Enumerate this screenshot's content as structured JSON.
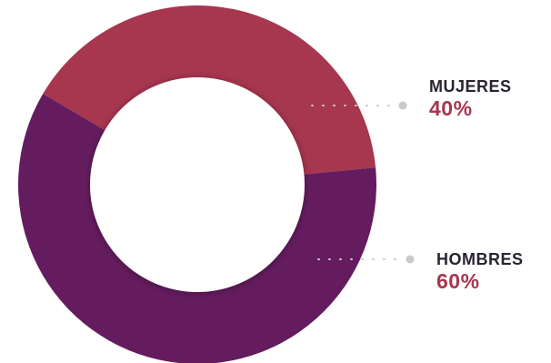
{
  "chart_data": {
    "type": "pie",
    "title": "",
    "categories": [
      "MUJERES",
      "HOMBRES"
    ],
    "values": [
      40,
      60
    ],
    "value_labels": [
      "40%",
      "60%"
    ],
    "colors": [
      "#a7364f",
      "#641c5e"
    ],
    "label_color": "#a7364f",
    "leader_dot_color": "#c9c9c9",
    "donut": true,
    "legend": "right"
  }
}
